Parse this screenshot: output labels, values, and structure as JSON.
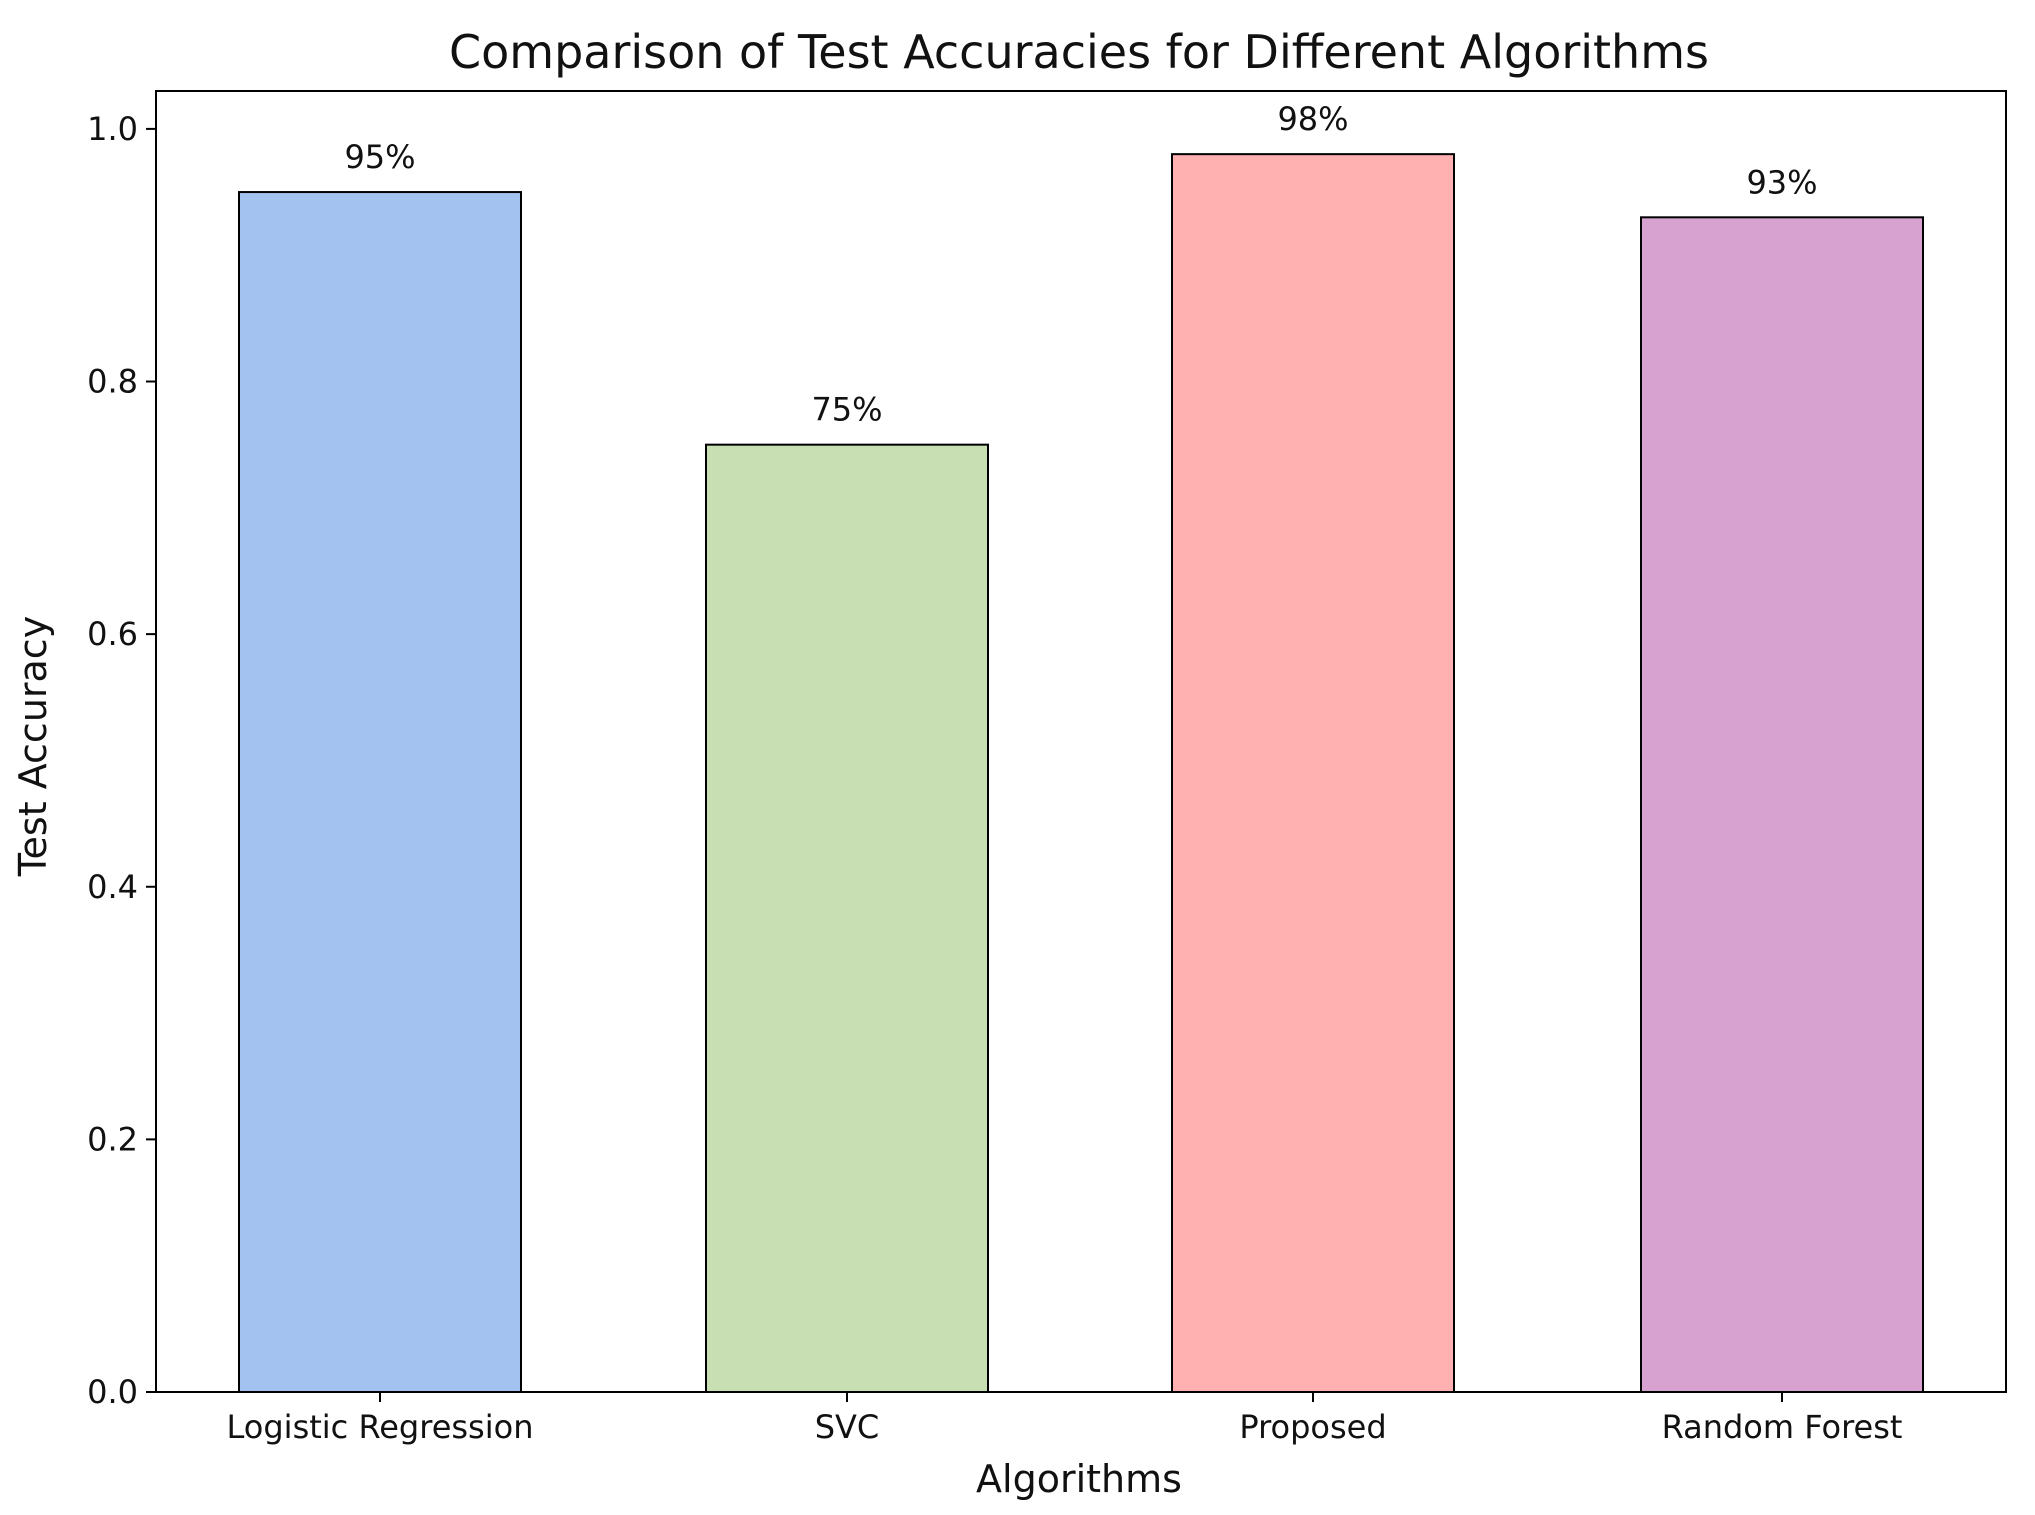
{
  "chart_data": {
    "type": "bar",
    "title": "Comparison of Test Accuracies for Different Algorithms",
    "xlabel": "Algorithms",
    "ylabel": "Test Accuracy",
    "categories": [
      "Logistic Regression",
      "SVC",
      "Proposed",
      "Random Forest"
    ],
    "values": [
      0.95,
      0.75,
      0.98,
      0.93
    ],
    "data_labels": [
      "95%",
      "75%",
      "98%",
      "93%"
    ],
    "colors": [
      "#a4c2f0",
      "#c7dfb3",
      "#ffb0b1",
      "#d7a1d0"
    ],
    "bar_edge_color": "#000000",
    "ylim": [
      0,
      1.03
    ],
    "yticks": [
      0.0,
      0.2,
      0.4,
      0.6,
      0.8,
      1.0
    ],
    "ytick_labels": [
      "0.0",
      "0.2",
      "0.4",
      "0.6",
      "0.8",
      "1.0"
    ],
    "grid": false,
    "legend": "none"
  }
}
